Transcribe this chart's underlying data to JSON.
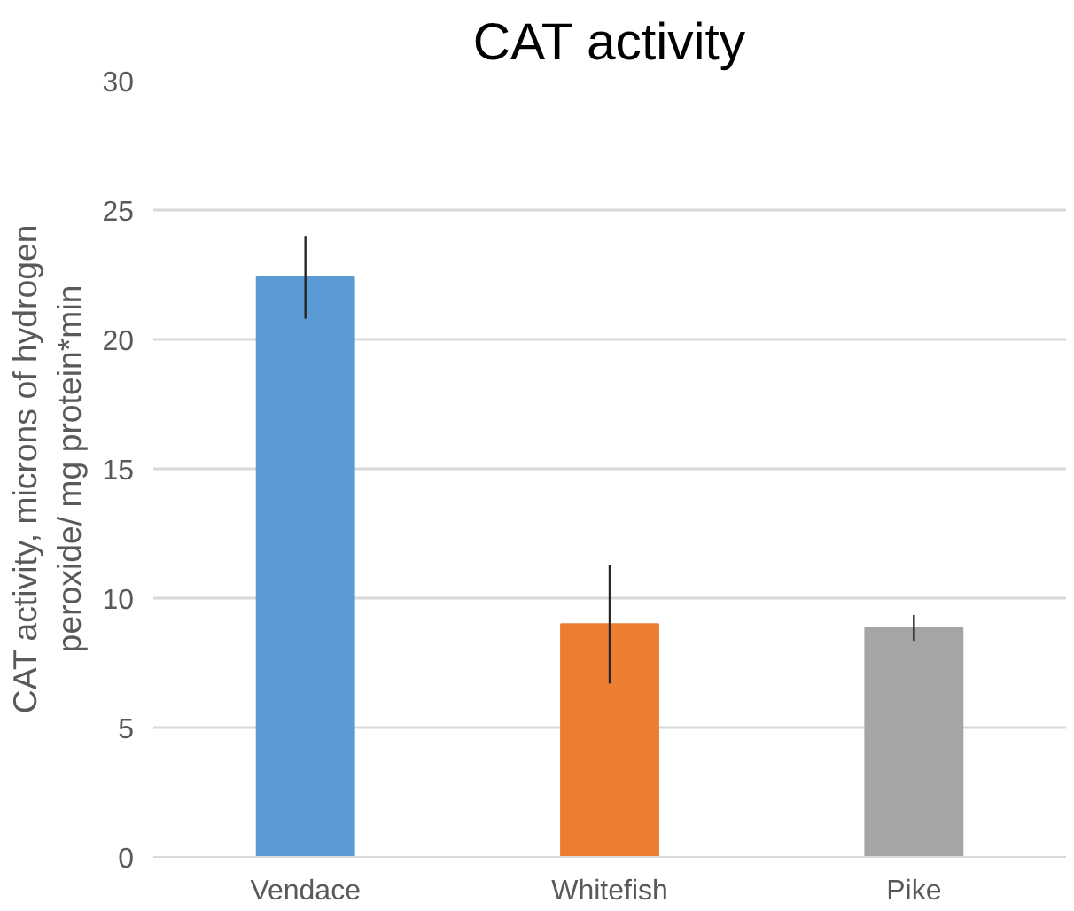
{
  "chart_data": {
    "type": "bar",
    "title": "CAT activity",
    "ylabel": "CAT activity, microns of hydrogen\nperoxide/ mg protein*min",
    "categories": [
      "Vendace",
      "Whitefish",
      "Pike"
    ],
    "values": [
      22.4,
      9.0,
      8.85
    ],
    "colors": [
      "#5b9bd5",
      "#ed7d31",
      "#a5a5a5"
    ],
    "errors": [
      1.6,
      2.3,
      0.5
    ],
    "ylim": [
      0,
      30
    ],
    "yticks": [
      0,
      5,
      10,
      15,
      20,
      25,
      30
    ],
    "grid": "y"
  }
}
